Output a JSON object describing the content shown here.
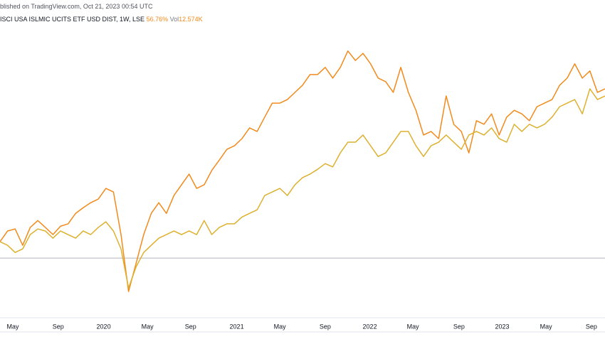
{
  "header": {
    "published": "blished on TradingView.com, Oct 21, 2023 00:54 UTC",
    "symbol": "ISCI USA ISLMIC UCITS ETF USD DIST, 1W, LSE",
    "change": "56.76%",
    "volume_label": "Vol",
    "volume": "12.574K"
  },
  "chart_data": {
    "type": "line",
    "series": [
      {
        "color": "#f28a1c",
        "values": [
          5.5,
          9.1,
          9.8,
          4.3,
          10.3,
          12.6,
          10.3,
          7.9,
          10.7,
          11.5,
          15.0,
          16.9,
          18.6,
          19.8,
          23.4,
          22.2,
          7.9,
          -11.2,
          -1.7,
          7.9,
          15.0,
          18.6,
          15.0,
          21.0,
          24.6,
          28.2,
          23.4,
          24.6,
          29.4,
          32.9,
          36.5,
          37.7,
          40.1,
          43.7,
          42.5,
          47.3,
          52.0,
          52.0,
          53.2,
          55.6,
          58.0,
          61.6,
          61.6,
          64.0,
          60.4,
          64.0,
          69.5,
          66.3,
          68.7,
          65.2,
          60.4,
          59.2,
          55.6,
          64.0,
          55.6,
          49.6,
          41.3,
          42.5,
          40.1,
          54.4,
          44.9,
          42.5,
          35.3,
          46.1,
          44.9,
          48.4,
          41.3,
          47.3,
          49.6,
          48.4,
          46.1,
          50.8,
          52.0,
          53.2,
          58.0,
          60.4,
          65.2,
          60.4,
          62.8,
          55.6,
          56.8
        ]
      },
      {
        "color": "#ddb02e",
        "values": [
          5.5,
          4.3,
          1.9,
          3.1,
          7.9,
          9.8,
          9.1,
          6.7,
          9.1,
          7.9,
          6.7,
          9.1,
          7.9,
          10.3,
          12.2,
          9.1,
          3.1,
          -10.0,
          -2.9,
          1.9,
          4.3,
          6.7,
          7.9,
          9.1,
          7.9,
          9.1,
          7.9,
          12.6,
          7.9,
          10.3,
          11.5,
          11.5,
          13.8,
          15.0,
          16.2,
          21.0,
          22.2,
          23.4,
          21.0,
          24.6,
          27.0,
          28.2,
          29.8,
          31.7,
          30.6,
          35.3,
          38.9,
          38.9,
          41.3,
          37.7,
          34.1,
          35.3,
          38.9,
          42.5,
          42.5,
          37.7,
          34.1,
          37.7,
          38.9,
          41.3,
          38.9,
          36.5,
          41.3,
          42.5,
          41.3,
          43.7,
          40.1,
          38.9,
          44.9,
          42.5,
          44.9,
          43.7,
          44.9,
          47.3,
          50.8,
          52.0,
          53.2,
          48.4,
          56.8,
          53.2,
          54.4
        ]
      }
    ],
    "xlim": [
      0,
      80
    ],
    "ylim": [
      -20,
      86.6
    ],
    "baseline": 0,
    "xticks": [
      {
        "value": 1.7,
        "label": "May"
      },
      {
        "value": 7.7,
        "label": "Sep"
      },
      {
        "value": 13.7,
        "label": "2020"
      },
      {
        "value": 19.5,
        "label": "May"
      },
      {
        "value": 25.2,
        "label": "Sep"
      },
      {
        "value": 31.3,
        "label": "2021"
      },
      {
        "value": 37.0,
        "label": "May"
      },
      {
        "value": 43.0,
        "label": "Sep"
      },
      {
        "value": 48.9,
        "label": "2022"
      },
      {
        "value": 54.6,
        "label": "May"
      },
      {
        "value": 60.7,
        "label": "Sep"
      },
      {
        "value": 66.4,
        "label": "2023"
      },
      {
        "value": 72.2,
        "label": "May"
      },
      {
        "value": 78.2,
        "label": "Sep"
      }
    ]
  }
}
